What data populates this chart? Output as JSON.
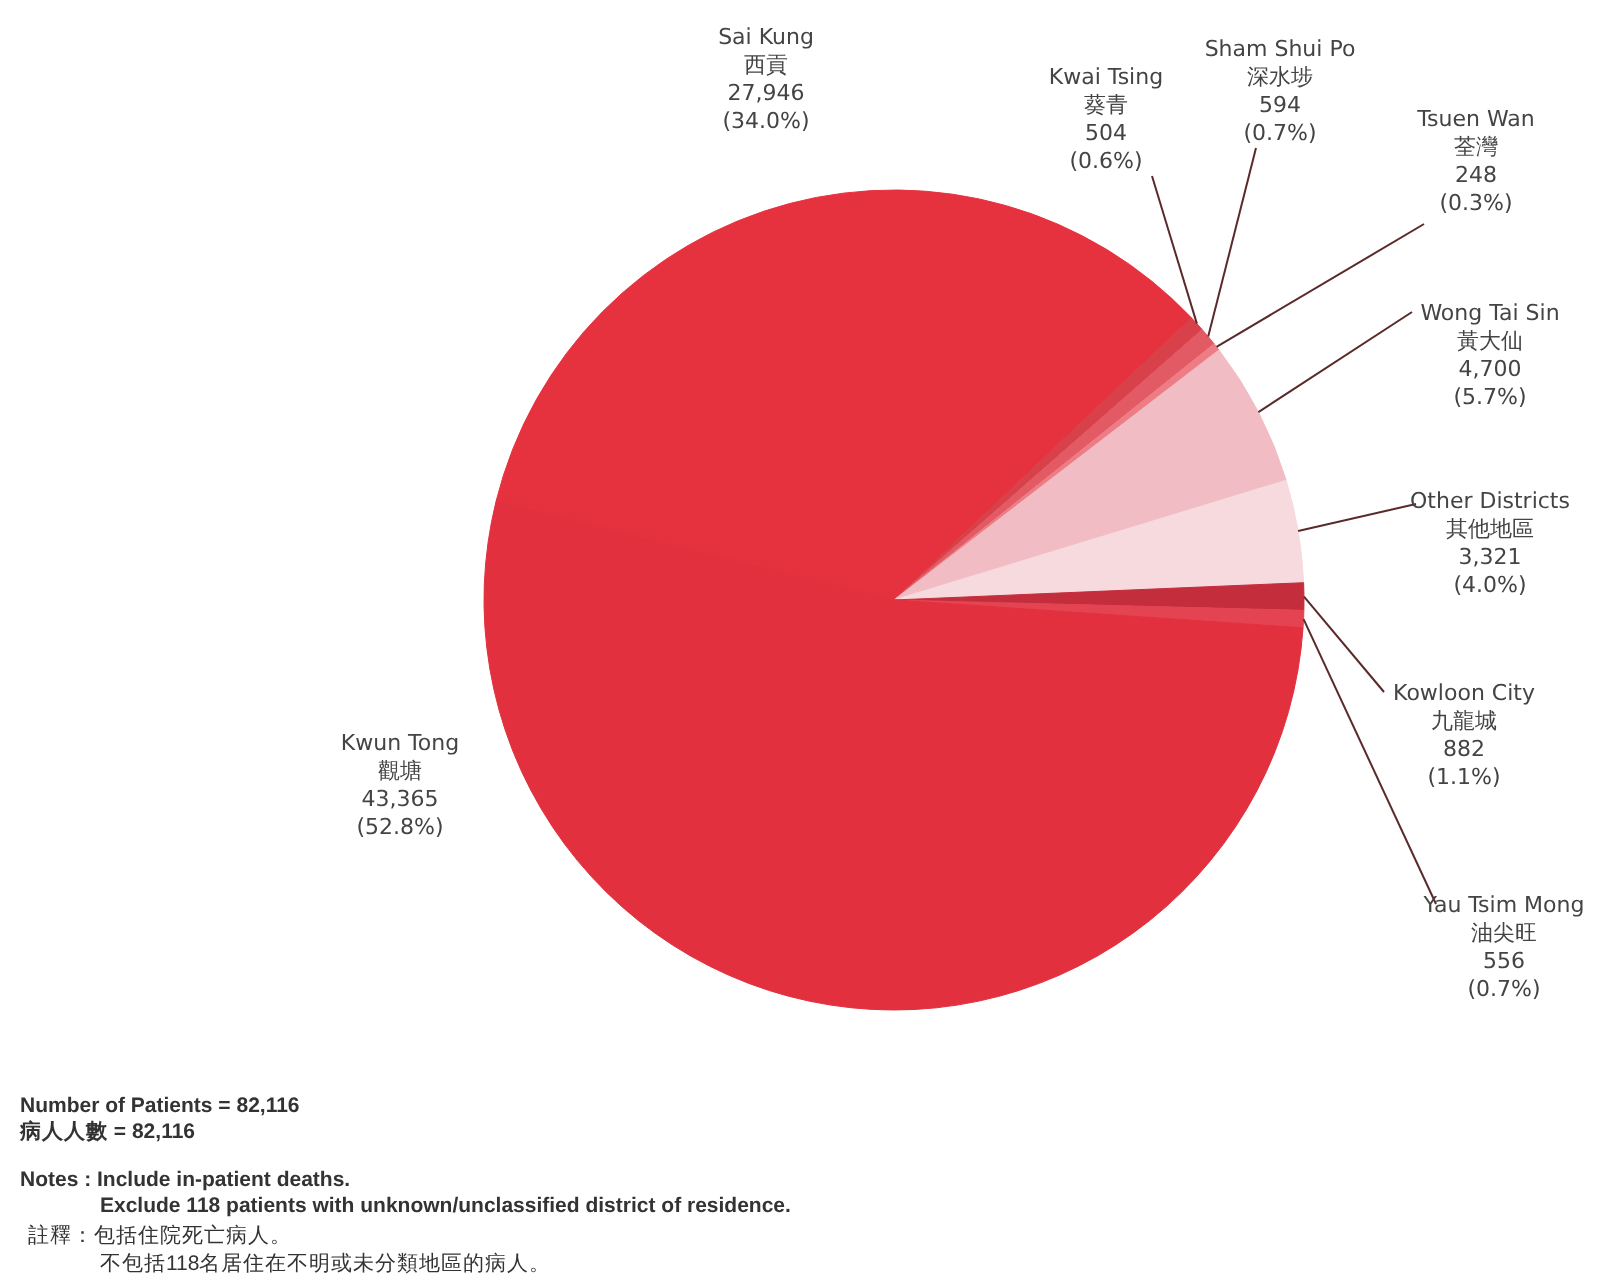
{
  "chart_data": {
    "type": "pie",
    "categories": [
      "Sai Kung\n西貢",
      "Kwai Tsing\n葵青",
      "Sham Shui Po\n深水埗",
      "Tsuen Wan\n荃灣",
      "Wong Tai Sin\n黃大仙",
      "Other Districts\n其他地區",
      "Kowloon City\n九龍城",
      "Yau Tsim Mong\n油尖旺",
      "Kwun Tong\n觀塘"
    ],
    "values": [
      27946,
      504,
      594,
      248,
      4700,
      3321,
      882,
      556,
      43365
    ],
    "value_labels": [
      "27,946\n(34.0%)",
      "504\n(0.6%)",
      "594\n(0.7%)",
      "248\n(0.3%)",
      "4,700\n(5.7%)",
      "3,321\n(4.0%)",
      "882\n(1.1%)",
      "556\n(0.7%)",
      "43,365\n(52.8%)"
    ],
    "colors": [
      "#e6323f",
      "#d8404a",
      "#e25a64",
      "#ee7c84",
      "#f2bcc4",
      "#f6dade",
      "#c42e3c",
      "#e44452",
      "#e2303e"
    ],
    "annotations": [
      "Number of Patients = 82,116",
      "病人人數 = 82,116",
      "Notes : Include in-patient deaths.",
      "Exclude 118 patients with unknown/unclassified district of residence.",
      "註釋：包括住院死亡病人。",
      "不包括118名居住在不明或未分類地區的病人。"
    ]
  }
}
